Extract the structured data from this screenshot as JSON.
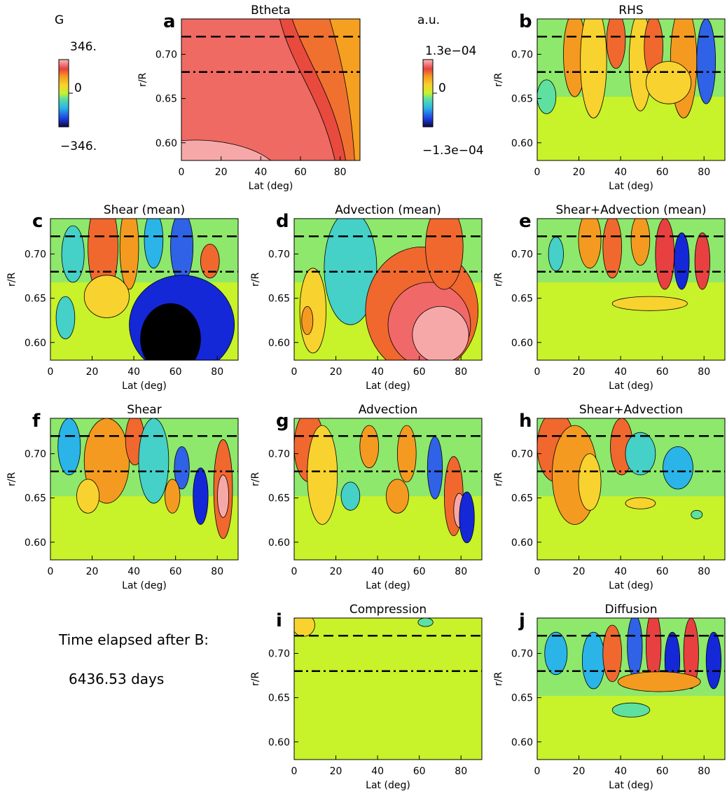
{
  "figure": {
    "colorbars": [
      {
        "unit": "G",
        "max_label": "346.",
        "zero_label": "0",
        "min_label": "−346."
      },
      {
        "unit": "a.u.",
        "max_label": "1.3e−04",
        "zero_label": "0",
        "min_label": "−1.3e−04"
      }
    ],
    "info": {
      "line1": "Time elapsed after B:",
      "line2": "6436.53 days"
    },
    "colors": {
      "deep_neg": "#000000",
      "dark_blue": "#1428d8",
      "mid_blue": "#2f62e6",
      "cyan": "#2ab4e8",
      "teal": "#45d0c8",
      "green_cyan": "#5ee0a0",
      "zero_green": "#c8f22a",
      "yellow": "#f8d22e",
      "orange": "#f59a20",
      "orange_red": "#f0682e",
      "red": "#e84040",
      "salmon": "#f06868",
      "pink": "#f6a8a8"
    }
  },
  "chart_data": [
    {
      "panel": "a",
      "title": "Btheta",
      "type": "heatmap",
      "xlabel": "Lat (deg)",
      "ylabel": "r/R",
      "xlim": [
        0,
        90
      ],
      "ylim": [
        0.58,
        0.74
      ],
      "xticks": [
        "0",
        "20",
        "40",
        "60",
        "80"
      ],
      "yticks": [
        "0.60",
        "0.65",
        "0.70"
      ],
      "reference_lines": [
        {
          "r": 0.72,
          "style": "dashed"
        },
        {
          "r": 0.68,
          "style": "dash-dot"
        }
      ]
    },
    {
      "panel": "b",
      "title": "RHS",
      "type": "heatmap",
      "xlabel": "Lat (deg)",
      "ylabel": "r/R",
      "xlim": [
        0,
        90
      ],
      "ylim": [
        0.58,
        0.74
      ],
      "xticks": [
        "0",
        "20",
        "40",
        "60",
        "80"
      ],
      "yticks": [
        "0.60",
        "0.65",
        "0.70"
      ],
      "reference_lines": [
        {
          "r": 0.72,
          "style": "dashed"
        },
        {
          "r": 0.68,
          "style": "dash-dot"
        }
      ]
    },
    {
      "panel": "c",
      "title": "Shear (mean)",
      "type": "heatmap",
      "xlabel": "Lat (deg)",
      "ylabel": "r/R",
      "xlim": [
        0,
        90
      ],
      "ylim": [
        0.58,
        0.74
      ],
      "xticks": [
        "0",
        "20",
        "40",
        "60",
        "80"
      ],
      "yticks": [
        "0.60",
        "0.65",
        "0.70"
      ],
      "reference_lines": [
        {
          "r": 0.72,
          "style": "dashed"
        },
        {
          "r": 0.68,
          "style": "dash-dot"
        }
      ]
    },
    {
      "panel": "d",
      "title": "Advection (mean)",
      "type": "heatmap",
      "xlabel": "Lat (deg)",
      "ylabel": "r/R",
      "xlim": [
        0,
        90
      ],
      "ylim": [
        0.58,
        0.74
      ],
      "xticks": [
        "0",
        "20",
        "40",
        "60",
        "80"
      ],
      "yticks": [
        "0.60",
        "0.65",
        "0.70"
      ],
      "reference_lines": [
        {
          "r": 0.72,
          "style": "dashed"
        },
        {
          "r": 0.68,
          "style": "dash-dot"
        }
      ]
    },
    {
      "panel": "e",
      "title": "Shear+Advection (mean)",
      "type": "heatmap",
      "xlabel": "Lat (deg)",
      "ylabel": "r/R",
      "xlim": [
        0,
        90
      ],
      "ylim": [
        0.58,
        0.74
      ],
      "xticks": [
        "0",
        "20",
        "40",
        "60",
        "80"
      ],
      "yticks": [
        "0.60",
        "0.65",
        "0.70"
      ],
      "reference_lines": [
        {
          "r": 0.72,
          "style": "dashed"
        },
        {
          "r": 0.68,
          "style": "dash-dot"
        }
      ]
    },
    {
      "panel": "f",
      "title": "Shear",
      "type": "heatmap",
      "xlabel": "Lat (deg)",
      "ylabel": "r/R",
      "xlim": [
        0,
        90
      ],
      "ylim": [
        0.58,
        0.74
      ],
      "xticks": [
        "0",
        "20",
        "40",
        "60",
        "80"
      ],
      "yticks": [
        "0.60",
        "0.65",
        "0.70"
      ],
      "reference_lines": [
        {
          "r": 0.72,
          "style": "dashed"
        },
        {
          "r": 0.68,
          "style": "dash-dot"
        }
      ]
    },
    {
      "panel": "g",
      "title": "Advection",
      "type": "heatmap",
      "xlabel": "Lat (deg)",
      "ylabel": "r/R",
      "xlim": [
        0,
        90
      ],
      "ylim": [
        0.58,
        0.74
      ],
      "xticks": [
        "0",
        "20",
        "40",
        "60",
        "80"
      ],
      "yticks": [
        "0.60",
        "0.65",
        "0.70"
      ],
      "reference_lines": [
        {
          "r": 0.72,
          "style": "dashed"
        },
        {
          "r": 0.68,
          "style": "dash-dot"
        }
      ]
    },
    {
      "panel": "h",
      "title": "Shear+Advection",
      "type": "heatmap",
      "xlabel": "Lat (deg)",
      "ylabel": "r/R",
      "xlim": [
        0,
        90
      ],
      "ylim": [
        0.58,
        0.74
      ],
      "xticks": [
        "0",
        "20",
        "40",
        "60",
        "80"
      ],
      "yticks": [
        "0.60",
        "0.65",
        "0.70"
      ],
      "reference_lines": [
        {
          "r": 0.72,
          "style": "dashed"
        },
        {
          "r": 0.68,
          "style": "dash-dot"
        }
      ]
    },
    {
      "panel": "i",
      "title": "Compression",
      "type": "heatmap",
      "xlabel": "Lat (deg)",
      "ylabel": "r/R",
      "xlim": [
        0,
        90
      ],
      "ylim": [
        0.58,
        0.74
      ],
      "xticks": [
        "0",
        "20",
        "40",
        "60",
        "80"
      ],
      "yticks": [
        "0.60",
        "0.65",
        "0.70"
      ],
      "reference_lines": [
        {
          "r": 0.72,
          "style": "dashed"
        },
        {
          "r": 0.68,
          "style": "dash-dot"
        }
      ]
    },
    {
      "panel": "j",
      "title": "Diffusion",
      "type": "heatmap",
      "xlabel": "Lat (deg)",
      "ylabel": "r/R",
      "xlim": [
        0,
        90
      ],
      "ylim": [
        0.58,
        0.74
      ],
      "xticks": [
        "0",
        "20",
        "40",
        "60",
        "80"
      ],
      "yticks": [
        "0.60",
        "0.65",
        "0.70"
      ],
      "reference_lines": [
        {
          "r": 0.72,
          "style": "dashed"
        },
        {
          "r": 0.68,
          "style": "dash-dot"
        }
      ]
    }
  ]
}
